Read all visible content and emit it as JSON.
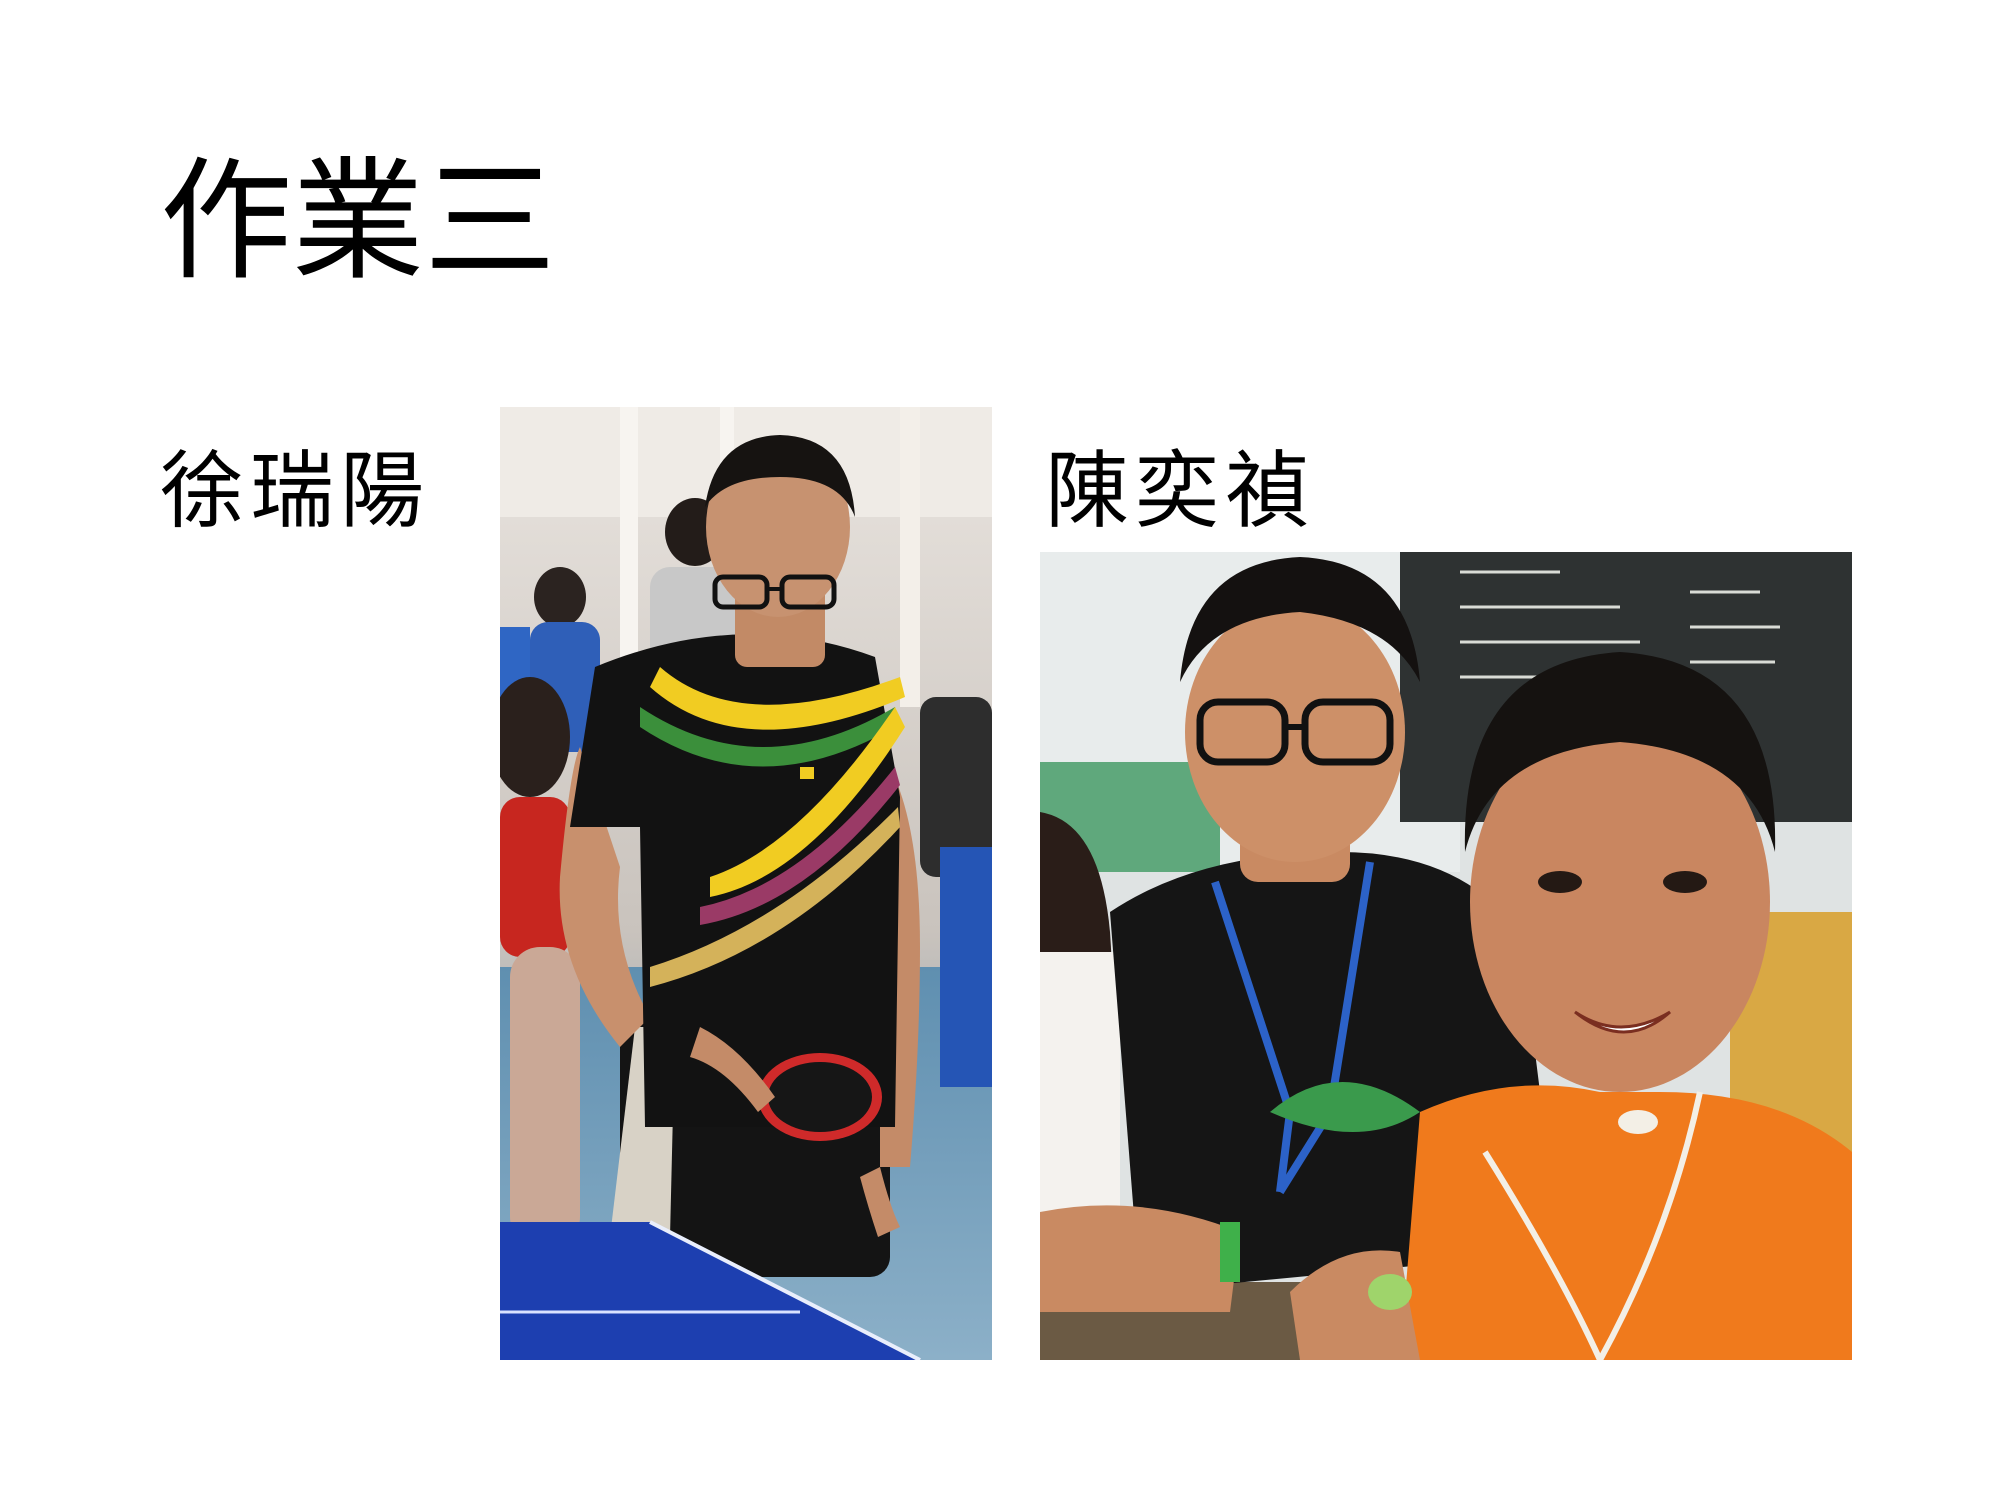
{
  "slide": {
    "title": "作業三",
    "people": [
      {
        "name": "徐瑞陽",
        "photo_subject": "table-tennis-player-photo"
      },
      {
        "name": "陳奕禎",
        "photo_subject": "two-boys-classroom-photo"
      }
    ]
  },
  "colors": {
    "background": "#ffffff",
    "text": "#000000",
    "table_blue": "#1d3fb0",
    "shirt_orange": "#f07a1c",
    "chalkboard": "#2e3232"
  }
}
